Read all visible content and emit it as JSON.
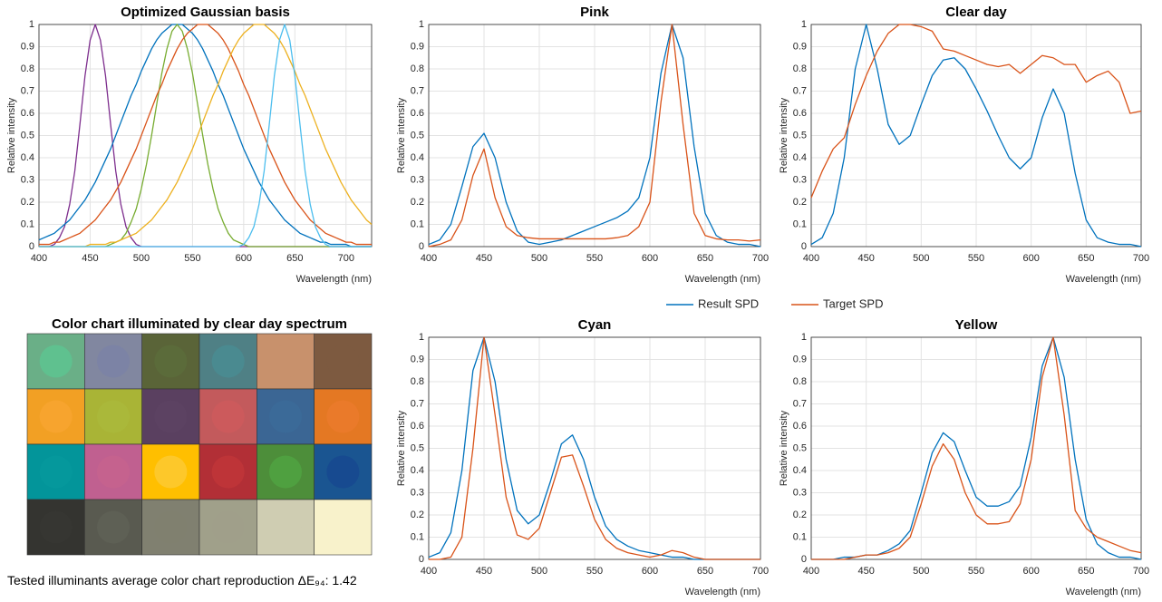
{
  "chart_data": [
    {
      "type": "line",
      "title": "Optimized Gaussian basis",
      "xlabel": "Wavelength (nm)",
      "ylabel": "Relative intensity",
      "x": [
        400,
        405,
        410,
        415,
        420,
        425,
        430,
        435,
        440,
        445,
        450,
        455,
        460,
        465,
        470,
        475,
        480,
        485,
        490,
        495,
        500,
        505,
        510,
        515,
        520,
        525,
        530,
        535,
        540,
        545,
        550,
        555,
        560,
        565,
        570,
        575,
        580,
        585,
        590,
        595,
        600,
        605,
        610,
        615,
        620,
        625,
        630,
        635,
        640,
        645,
        650,
        655,
        660,
        665,
        670,
        675,
        680,
        685,
        690,
        695,
        700,
        705,
        710,
        715,
        720,
        725
      ],
      "xlim": [
        400,
        725
      ],
      "ylim": [
        0,
        1
      ],
      "xticks": [
        400,
        450,
        500,
        550,
        600,
        650,
        700
      ],
      "yticks": [
        0,
        0.1,
        0.2,
        0.3,
        0.4,
        0.5,
        0.6,
        0.7,
        0.8,
        0.9,
        1
      ],
      "grid": true,
      "series": [
        {
          "color": "#7E2F8E",
          "values": [
            0,
            0,
            0,
            0.01,
            0.04,
            0.09,
            0.19,
            0.34,
            0.55,
            0.77,
            0.93,
            1,
            0.93,
            0.77,
            0.55,
            0.34,
            0.19,
            0.09,
            0.04,
            0.01,
            0,
            0,
            0,
            0,
            0,
            0,
            0,
            0,
            0,
            0,
            0,
            0,
            0,
            0,
            0,
            0,
            0,
            0,
            0,
            0,
            0,
            0,
            0,
            0,
            0,
            0,
            0,
            0,
            0,
            0,
            0,
            0,
            0,
            0,
            0,
            0,
            0,
            0,
            0,
            0,
            0,
            0,
            0,
            0,
            0,
            0
          ]
        },
        {
          "color": "#0072BD",
          "values": [
            0.03,
            0.04,
            0.05,
            0.06,
            0.08,
            0.1,
            0.12,
            0.15,
            0.18,
            0.21,
            0.25,
            0.29,
            0.34,
            0.39,
            0.44,
            0.5,
            0.56,
            0.62,
            0.68,
            0.73,
            0.79,
            0.84,
            0.89,
            0.93,
            0.96,
            0.98,
            1,
            1,
            1,
            0.98,
            0.96,
            0.93,
            0.89,
            0.84,
            0.79,
            0.73,
            0.68,
            0.62,
            0.56,
            0.5,
            0.44,
            0.39,
            0.34,
            0.29,
            0.25,
            0.21,
            0.18,
            0.15,
            0.12,
            0.1,
            0.08,
            0.06,
            0.05,
            0.04,
            0.03,
            0.02,
            0.02,
            0.01,
            0.01,
            0.01,
            0.01,
            0,
            0,
            0,
            0,
            0
          ]
        },
        {
          "color": "#77AC30",
          "values": [
            0,
            0,
            0,
            0,
            0,
            0,
            0,
            0,
            0,
            0,
            0,
            0,
            0,
            0,
            0.01,
            0.02,
            0.03,
            0.06,
            0.11,
            0.17,
            0.26,
            0.37,
            0.5,
            0.64,
            0.78,
            0.89,
            0.97,
            1,
            0.97,
            0.89,
            0.78,
            0.64,
            0.5,
            0.37,
            0.26,
            0.17,
            0.11,
            0.06,
            0.03,
            0.02,
            0.01,
            0,
            0,
            0,
            0,
            0,
            0,
            0,
            0,
            0,
            0,
            0,
            0,
            0,
            0,
            0,
            0,
            0,
            0,
            0,
            0,
            0,
            0,
            0,
            0,
            0
          ]
        },
        {
          "color": "#D95319",
          "values": [
            0.01,
            0.01,
            0.01,
            0.02,
            0.02,
            0.03,
            0.04,
            0.05,
            0.06,
            0.08,
            0.1,
            0.12,
            0.15,
            0.18,
            0.21,
            0.25,
            0.29,
            0.34,
            0.39,
            0.44,
            0.5,
            0.56,
            0.62,
            0.68,
            0.73,
            0.79,
            0.84,
            0.89,
            0.93,
            0.96,
            0.98,
            1,
            1,
            1,
            0.98,
            0.96,
            0.93,
            0.89,
            0.84,
            0.79,
            0.73,
            0.68,
            0.62,
            0.56,
            0.5,
            0.44,
            0.39,
            0.34,
            0.29,
            0.25,
            0.21,
            0.18,
            0.15,
            0.12,
            0.1,
            0.08,
            0.06,
            0.05,
            0.04,
            0.03,
            0.02,
            0.02,
            0.01,
            0.01,
            0.01,
            0.01
          ]
        },
        {
          "color": "#EDB120",
          "values": [
            0,
            0,
            0,
            0,
            0,
            0,
            0,
            0,
            0,
            0,
            0.01,
            0.01,
            0.01,
            0.01,
            0.02,
            0.02,
            0.03,
            0.04,
            0.05,
            0.06,
            0.08,
            0.1,
            0.12,
            0.15,
            0.18,
            0.21,
            0.25,
            0.29,
            0.34,
            0.39,
            0.44,
            0.5,
            0.56,
            0.62,
            0.68,
            0.73,
            0.79,
            0.84,
            0.89,
            0.93,
            0.96,
            0.98,
            1,
            1,
            1,
            0.98,
            0.96,
            0.93,
            0.89,
            0.84,
            0.79,
            0.73,
            0.68,
            0.62,
            0.56,
            0.5,
            0.44,
            0.39,
            0.34,
            0.29,
            0.25,
            0.21,
            0.18,
            0.15,
            0.12,
            0.1
          ]
        },
        {
          "color": "#4DBEEE",
          "values": [
            0,
            0,
            0,
            0,
            0,
            0,
            0,
            0,
            0,
            0,
            0,
            0,
            0,
            0,
            0,
            0,
            0,
            0,
            0,
            0,
            0,
            0,
            0,
            0,
            0,
            0,
            0,
            0,
            0,
            0,
            0,
            0,
            0,
            0,
            0,
            0,
            0,
            0,
            0,
            0,
            0.01,
            0.04,
            0.09,
            0.19,
            0.34,
            0.55,
            0.77,
            0.93,
            1,
            0.93,
            0.77,
            0.55,
            0.34,
            0.19,
            0.09,
            0.04,
            0.01,
            0,
            0,
            0,
            0,
            0,
            0,
            0,
            0,
            0
          ]
        }
      ]
    },
    {
      "type": "line",
      "title": "Pink",
      "xlabel": "Wavelength (nm)",
      "ylabel": "Relative intensity",
      "x": [
        400,
        410,
        420,
        430,
        440,
        450,
        460,
        470,
        480,
        490,
        500,
        510,
        520,
        530,
        540,
        550,
        560,
        570,
        580,
        590,
        600,
        610,
        620,
        630,
        640,
        650,
        660,
        670,
        680,
        690,
        700
      ],
      "xlim": [
        400,
        700
      ],
      "ylim": [
        0,
        1
      ],
      "xticks": [
        400,
        450,
        500,
        550,
        600,
        650,
        700
      ],
      "yticks": [
        0,
        0.1,
        0.2,
        0.3,
        0.4,
        0.5,
        0.6,
        0.7,
        0.8,
        0.9,
        1
      ],
      "grid": true,
      "series": [
        {
          "color": "#0072BD",
          "values": [
            0.01,
            0.03,
            0.1,
            0.27,
            0.45,
            0.51,
            0.4,
            0.2,
            0.07,
            0.02,
            0.01,
            0.02,
            0.03,
            0.05,
            0.07,
            0.09,
            0.11,
            0.13,
            0.16,
            0.22,
            0.4,
            0.78,
            1,
            0.85,
            0.45,
            0.15,
            0.05,
            0.02,
            0.01,
            0.01,
            0
          ]
        },
        {
          "color": "#D95319",
          "values": [
            0,
            0.01,
            0.03,
            0.12,
            0.32,
            0.44,
            0.22,
            0.09,
            0.05,
            0.04,
            0.035,
            0.035,
            0.035,
            0.035,
            0.035,
            0.035,
            0.035,
            0.04,
            0.05,
            0.09,
            0.2,
            0.65,
            1,
            0.55,
            0.15,
            0.05,
            0.035,
            0.03,
            0.03,
            0.025,
            0.03
          ]
        }
      ]
    },
    {
      "type": "line",
      "title": "Clear day",
      "xlabel": "Wavelength (nm)",
      "ylabel": "Relative intensity",
      "x": [
        400,
        410,
        420,
        430,
        440,
        450,
        460,
        470,
        480,
        490,
        500,
        510,
        520,
        530,
        540,
        550,
        560,
        570,
        580,
        590,
        600,
        610,
        620,
        630,
        640,
        650,
        660,
        670,
        680,
        690,
        700
      ],
      "xlim": [
        400,
        700
      ],
      "ylim": [
        0,
        1
      ],
      "xticks": [
        400,
        450,
        500,
        550,
        600,
        650,
        700
      ],
      "yticks": [
        0,
        0.1,
        0.2,
        0.3,
        0.4,
        0.5,
        0.6,
        0.7,
        0.8,
        0.9,
        1
      ],
      "grid": true,
      "series": [
        {
          "color": "#0072BD",
          "values": [
            0.01,
            0.04,
            0.15,
            0.4,
            0.8,
            1,
            0.8,
            0.55,
            0.46,
            0.5,
            0.64,
            0.77,
            0.84,
            0.85,
            0.8,
            0.71,
            0.61,
            0.5,
            0.4,
            0.35,
            0.4,
            0.58,
            0.71,
            0.6,
            0.33,
            0.12,
            0.04,
            0.02,
            0.01,
            0.01,
            0
          ]
        },
        {
          "color": "#D95319",
          "values": [
            0.22,
            0.34,
            0.44,
            0.49,
            0.64,
            0.77,
            0.88,
            0.96,
            1,
            1,
            0.99,
            0.97,
            0.89,
            0.88,
            0.86,
            0.84,
            0.82,
            0.81,
            0.82,
            0.78,
            0.82,
            0.86,
            0.85,
            0.82,
            0.82,
            0.74,
            0.77,
            0.79,
            0.74,
            0.6,
            0.61
          ]
        }
      ]
    },
    {
      "type": "line",
      "title": "Cyan",
      "xlabel": "Wavelength (nm)",
      "ylabel": "Relative intensity",
      "x": [
        400,
        410,
        420,
        430,
        440,
        450,
        460,
        470,
        480,
        490,
        500,
        510,
        520,
        530,
        540,
        550,
        560,
        570,
        580,
        590,
        600,
        610,
        620,
        630,
        640,
        650,
        660,
        670,
        680,
        690,
        700
      ],
      "xlim": [
        400,
        700
      ],
      "ylim": [
        0,
        1
      ],
      "xticks": [
        400,
        450,
        500,
        550,
        600,
        650,
        700
      ],
      "yticks": [
        0,
        0.1,
        0.2,
        0.3,
        0.4,
        0.5,
        0.6,
        0.7,
        0.8,
        0.9,
        1
      ],
      "grid": true,
      "series": [
        {
          "color": "#0072BD",
          "values": [
            0.01,
            0.03,
            0.12,
            0.4,
            0.85,
            1,
            0.8,
            0.45,
            0.22,
            0.16,
            0.2,
            0.35,
            0.52,
            0.56,
            0.45,
            0.28,
            0.15,
            0.09,
            0.06,
            0.04,
            0.03,
            0.02,
            0.01,
            0.01,
            0,
            0,
            0,
            0,
            0,
            0,
            0
          ]
        },
        {
          "color": "#D95319",
          "values": [
            0,
            0,
            0.01,
            0.1,
            0.5,
            1,
            0.65,
            0.28,
            0.11,
            0.09,
            0.14,
            0.3,
            0.46,
            0.47,
            0.33,
            0.18,
            0.09,
            0.05,
            0.03,
            0.02,
            0.01,
            0.02,
            0.04,
            0.03,
            0.01,
            0,
            0,
            0,
            0,
            0,
            0
          ]
        }
      ]
    },
    {
      "type": "line",
      "title": "Yellow",
      "xlabel": "Wavelength (nm)",
      "ylabel": "Relative intensity",
      "x": [
        400,
        410,
        420,
        430,
        440,
        450,
        460,
        470,
        480,
        490,
        500,
        510,
        520,
        530,
        540,
        550,
        560,
        570,
        580,
        590,
        600,
        610,
        620,
        630,
        640,
        650,
        660,
        670,
        680,
        690,
        700
      ],
      "xlim": [
        400,
        700
      ],
      "ylim": [
        0,
        1
      ],
      "xticks": [
        400,
        450,
        500,
        550,
        600,
        650,
        700
      ],
      "yticks": [
        0,
        0.1,
        0.2,
        0.3,
        0.4,
        0.5,
        0.6,
        0.7,
        0.8,
        0.9,
        1
      ],
      "grid": true,
      "series": [
        {
          "color": "#0072BD",
          "values": [
            0,
            0,
            0,
            0.01,
            0.01,
            0.02,
            0.02,
            0.04,
            0.07,
            0.13,
            0.3,
            0.48,
            0.57,
            0.53,
            0.4,
            0.28,
            0.24,
            0.24,
            0.26,
            0.33,
            0.55,
            0.87,
            1,
            0.82,
            0.45,
            0.18,
            0.07,
            0.03,
            0.01,
            0.01,
            0
          ]
        },
        {
          "color": "#D95319",
          "values": [
            0,
            0,
            0,
            0,
            0.01,
            0.02,
            0.02,
            0.03,
            0.05,
            0.1,
            0.25,
            0.42,
            0.52,
            0.45,
            0.3,
            0.2,
            0.16,
            0.16,
            0.17,
            0.25,
            0.45,
            0.82,
            1,
            0.65,
            0.22,
            0.14,
            0.1,
            0.08,
            0.06,
            0.04,
            0.03
          ]
        }
      ]
    }
  ],
  "legend": [
    {
      "name": "Result SPD",
      "color": "#0072BD"
    },
    {
      "name": "Target SPD",
      "color": "#D95319"
    }
  ],
  "color_chart": {
    "title": "Color chart illuminated by clear day spectrum",
    "patches": [
      [
        {
          "outer": "#6aaf87",
          "inner": "#5fc18f"
        },
        {
          "outer": "#8187a0",
          "inner": "#7c83a5"
        },
        {
          "outer": "#5a6438",
          "inner": "#5b6b3a"
        },
        {
          "outer": "#4f8085",
          "inner": "#4a8a90"
        },
        {
          "outer": "#c8916c",
          "inner": "#c8916c"
        },
        {
          "outer": "#7d5a40",
          "inner": "#7d5a40"
        }
      ],
      [
        {
          "outer": "#f2a024",
          "inner": "#f7a42e"
        },
        {
          "outer": "#a9b436",
          "inner": "#aab83a"
        },
        {
          "outer": "#5a4060",
          "inner": "#5c4262"
        },
        {
          "outer": "#c35a5c",
          "inner": "#cc5a5c"
        },
        {
          "outer": "#3b6694",
          "inner": "#3b6a98"
        },
        {
          "outer": "#e47823",
          "inner": "#ea7a2a"
        }
      ],
      [
        {
          "outer": "#03959a",
          "inner": "#05989c"
        },
        {
          "outer": "#c06090",
          "inner": "#c5628e"
        },
        {
          "outer": "#ffbf00",
          "inner": "#fdc82a"
        },
        {
          "outer": "#b22f36",
          "inner": "#be3438"
        },
        {
          "outer": "#4d8e3a",
          "inner": "#4fa040"
        },
        {
          "outer": "#1a5591",
          "inner": "#174a90"
        }
      ],
      [
        {
          "outer": "#343430",
          "inner": "#363632"
        },
        {
          "outer": "#595a50",
          "inner": "#5e6055"
        },
        {
          "outer": "#808070",
          "inner": "#80806f"
        },
        {
          "outer": "#a0a08a",
          "inner": "#a09f8a"
        },
        {
          "outer": "#cfcdb2",
          "inner": "#cfcdb2"
        },
        {
          "outer": "#f8f2cb",
          "inner": "#f8f2cb"
        }
      ]
    ]
  },
  "footer": {
    "label": "Tested illuminants average color chart reproduction ΔE₉₄:",
    "value": 1.42
  }
}
